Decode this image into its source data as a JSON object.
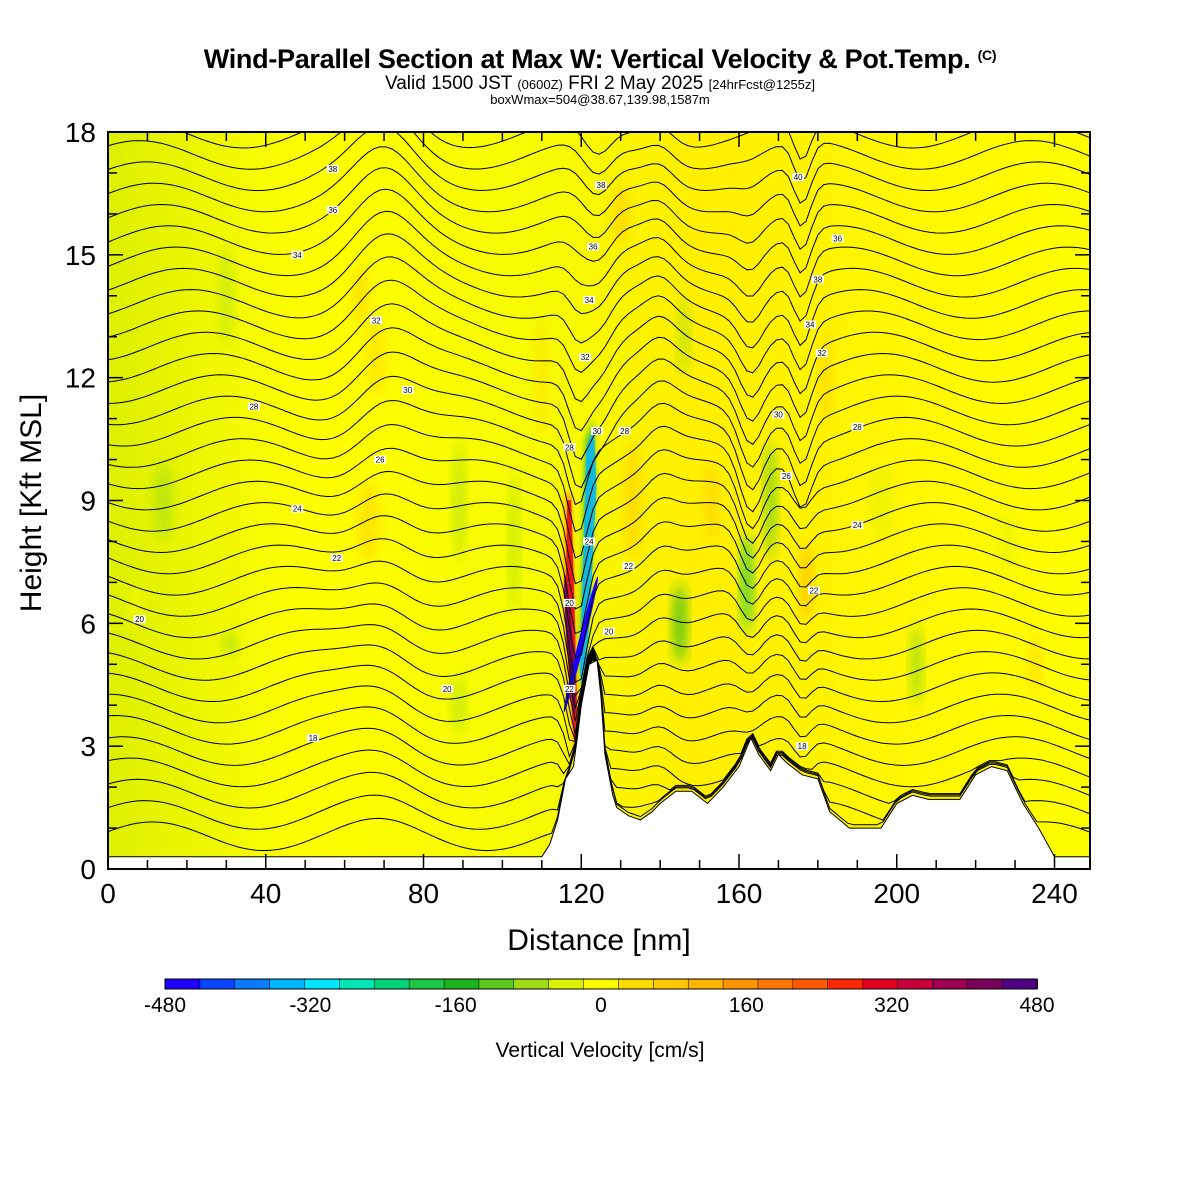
{
  "header": {
    "title_main": "Wind-Parallel Section at Max W: Vertical Velocity & Pot.Temp.",
    "title_mark": "(C)",
    "valid_prefix": "Valid 1500 JST",
    "valid_utc": "(0600Z)",
    "valid_date": "FRI 2 May 2025",
    "valid_fcst": "[24hrFcst@1255z]",
    "box_info": "boxWmax=504@38.67,139.98,1587m"
  },
  "chart_data": {
    "type": "heatmap",
    "xlabel": "Distance [nm]",
    "ylabel": "Height [Kft MSL]",
    "xlim": [
      0,
      249
    ],
    "ylim": [
      0,
      18
    ],
    "x_ticks": [
      0,
      40,
      80,
      120,
      160,
      200,
      240
    ],
    "y_ticks": [
      0,
      3,
      6,
      9,
      12,
      15,
      18
    ],
    "colorbar": {
      "label": "Vertical Velocity [cm/s]",
      "tick_values": [
        -480,
        -320,
        -160,
        0,
        160,
        320,
        480
      ],
      "tick_labels": [
        "-480",
        "-320",
        "-160",
        "0",
        "160",
        "320",
        "480"
      ],
      "colors": [
        "#1e00ff",
        "#0a46ff",
        "#0a7dff",
        "#00b4ff",
        "#00e6ff",
        "#00e6b4",
        "#00d278",
        "#1ec846",
        "#1eb41e",
        "#5ac81e",
        "#a0dc14",
        "#dcf000",
        "#ffff00",
        "#ffdc00",
        "#ffc800",
        "#ffb400",
        "#ff9600",
        "#ff7800",
        "#ff5a00",
        "#ff2800",
        "#e6001e",
        "#c8003c",
        "#a00050",
        "#78005a",
        "#500082"
      ]
    },
    "terrain_kft": [
      [
        0,
        0.3
      ],
      [
        12,
        0.3
      ],
      [
        24,
        0.3
      ],
      [
        36,
        0.3
      ],
      [
        48,
        0.3
      ],
      [
        60,
        0.3
      ],
      [
        72,
        0.3
      ],
      [
        84,
        0.3
      ],
      [
        96,
        0.3
      ],
      [
        104,
        0.3
      ],
      [
        110,
        0.3
      ],
      [
        112,
        0.6
      ],
      [
        114,
        1.2
      ],
      [
        116,
        2.2
      ],
      [
        118,
        2.5
      ],
      [
        119,
        3.2
      ],
      [
        120,
        4.0
      ],
      [
        122,
        5.0
      ],
      [
        124,
        5.1
      ],
      [
        125,
        4.2
      ],
      [
        126,
        2.8
      ],
      [
        128,
        1.8
      ],
      [
        129,
        1.5
      ],
      [
        132,
        1.3
      ],
      [
        135,
        1.2
      ],
      [
        138,
        1.4
      ],
      [
        140,
        1.6
      ],
      [
        144,
        1.9
      ],
      [
        148,
        1.9
      ],
      [
        152,
        1.6
      ],
      [
        156,
        2.0
      ],
      [
        160,
        2.5
      ],
      [
        163,
        3.2
      ],
      [
        165,
        2.8
      ],
      [
        168,
        2.4
      ],
      [
        170,
        2.8
      ],
      [
        172,
        2.6
      ],
      [
        176,
        2.3
      ],
      [
        180,
        2.2
      ],
      [
        183,
        1.4
      ],
      [
        188,
        1.0
      ],
      [
        196,
        1.0
      ],
      [
        200,
        1.6
      ],
      [
        204,
        1.8
      ],
      [
        208,
        1.7
      ],
      [
        212,
        1.7
      ],
      [
        216,
        1.7
      ],
      [
        220,
        2.3
      ],
      [
        224,
        2.5
      ],
      [
        228,
        2.4
      ],
      [
        232,
        1.6
      ],
      [
        236,
        1.0
      ],
      [
        240,
        0.3
      ],
      [
        243,
        0.3
      ],
      [
        249,
        0.3
      ]
    ],
    "theta_levels_K": [
      16,
      18,
      20,
      22,
      24,
      26,
      28,
      30,
      32,
      34,
      36,
      38,
      40
    ],
    "contour_labels": [
      {
        "x": 52,
        "y": 3.2,
        "text": "18"
      },
      {
        "x": 176,
        "y": 3.0,
        "text": "18"
      },
      {
        "x": 8,
        "y": 6.1,
        "text": "20"
      },
      {
        "x": 86,
        "y": 4.4,
        "text": "20"
      },
      {
        "x": 127,
        "y": 5.8,
        "text": "20"
      },
      {
        "x": 117,
        "y": 6.5,
        "text": "20"
      },
      {
        "x": 58,
        "y": 7.6,
        "text": "22"
      },
      {
        "x": 132,
        "y": 7.4,
        "text": "22"
      },
      {
        "x": 179,
        "y": 6.8,
        "text": "22"
      },
      {
        "x": 117,
        "y": 4.4,
        "text": "22"
      },
      {
        "x": 48,
        "y": 8.8,
        "text": "24"
      },
      {
        "x": 122,
        "y": 8.0,
        "text": "24"
      },
      {
        "x": 190,
        "y": 8.4,
        "text": "24"
      },
      {
        "x": 69,
        "y": 10.0,
        "text": "26"
      },
      {
        "x": 172,
        "y": 9.6,
        "text": "26"
      },
      {
        "x": 37,
        "y": 11.3,
        "text": "28"
      },
      {
        "x": 117,
        "y": 10.3,
        "text": "28"
      },
      {
        "x": 131,
        "y": 10.7,
        "text": "28"
      },
      {
        "x": 190,
        "y": 10.8,
        "text": "28"
      },
      {
        "x": 76,
        "y": 11.7,
        "text": "30"
      },
      {
        "x": 124,
        "y": 10.7,
        "text": "30"
      },
      {
        "x": 170,
        "y": 11.1,
        "text": "30"
      },
      {
        "x": 68,
        "y": 13.4,
        "text": "32"
      },
      {
        "x": 121,
        "y": 12.5,
        "text": "32"
      },
      {
        "x": 181,
        "y": 12.6,
        "text": "32"
      },
      {
        "x": 48,
        "y": 15.0,
        "text": "34"
      },
      {
        "x": 122,
        "y": 13.9,
        "text": "34"
      },
      {
        "x": 178,
        "y": 13.3,
        "text": "34"
      },
      {
        "x": 57,
        "y": 16.1,
        "text": "36"
      },
      {
        "x": 123,
        "y": 15.2,
        "text": "36"
      },
      {
        "x": 185,
        "y": 15.4,
        "text": "36"
      },
      {
        "x": 180,
        "y": 14.4,
        "text": "38"
      },
      {
        "x": 125,
        "y": 16.7,
        "text": "38"
      },
      {
        "x": 57,
        "y": 17.1,
        "text": "38"
      },
      {
        "x": 175,
        "y": 16.9,
        "text": "40"
      }
    ]
  }
}
